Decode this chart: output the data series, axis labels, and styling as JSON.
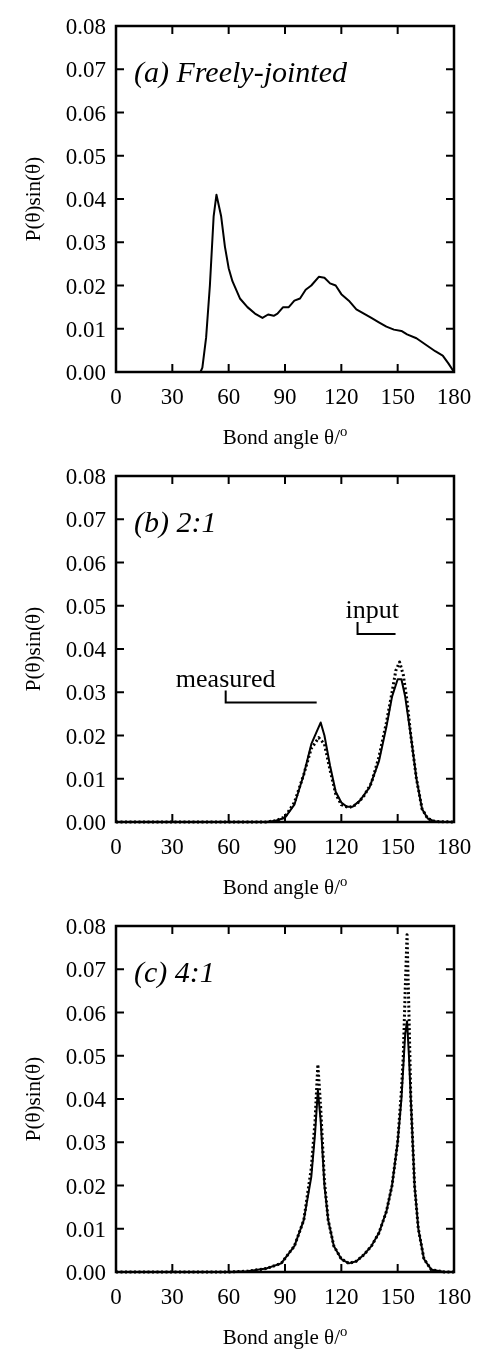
{
  "chart_data": [
    {
      "type": "line",
      "title": "(a) Freely-jointed",
      "xlabel": "Bond angle θ/$^{o}$",
      "ylabel": "P(θ)sin(θ)",
      "xlim": [
        0,
        180
      ],
      "ylim": [
        0,
        0.08
      ],
      "xticks": [
        0,
        30,
        60,
        90,
        120,
        150,
        180
      ],
      "yticks": [
        {
          "value": 0,
          "label": "0.00"
        },
        {
          "value": 0.01,
          "label": "0.01"
        },
        {
          "value": 0.02,
          "label": "0.02"
        },
        {
          "value": 0.03,
          "label": "0.03"
        },
        {
          "value": 0.04,
          "label": "0.04"
        },
        {
          "value": 0.05,
          "label": "0.05"
        },
        {
          "value": 0.06,
          "label": "0.06"
        },
        {
          "value": 0.07,
          "label": "0.07"
        },
        {
          "value": 0.08,
          "label": "0.08"
        }
      ],
      "grid": false,
      "marker": "none",
      "series": [
        {
          "color": "#000000",
          "line_style": "solid",
          "x": [
            0,
            45,
            46,
            48,
            50,
            52,
            53.5,
            56,
            58,
            60,
            62,
            66,
            70,
            74,
            78,
            81,
            84,
            86,
            89,
            92,
            95,
            98,
            101,
            104,
            108,
            111,
            114,
            117,
            120,
            124,
            128,
            132,
            136,
            140,
            144,
            148,
            152,
            155,
            160,
            165,
            170,
            174,
            177,
            180
          ],
          "values": [
            0,
            0,
            0.001,
            0.008,
            0.02,
            0.036,
            0.041,
            0.036,
            0.029,
            0.024,
            0.021,
            0.017,
            0.015,
            0.0135,
            0.0125,
            0.0133,
            0.013,
            0.0135,
            0.015,
            0.015,
            0.0165,
            0.017,
            0.019,
            0.02,
            0.022,
            0.0218,
            0.0205,
            0.02,
            0.018,
            0.0165,
            0.0145,
            0.0135,
            0.0125,
            0.0115,
            0.0105,
            0.0098,
            0.0095,
            0.0087,
            0.0078,
            0.0063,
            0.0048,
            0.0038,
            0.002,
            0
          ]
        }
      ]
    },
    {
      "type": "line",
      "title": "(b) 2:1",
      "xlabel": "Bond angle θ/$^{o}$",
      "ylabel": "P(θ)sin(θ)",
      "xlim": [
        0,
        180
      ],
      "ylim": [
        0,
        0.08
      ],
      "xticks": [
        0,
        30,
        60,
        90,
        120,
        150,
        180
      ],
      "yticks": [
        {
          "value": 0,
          "label": "0.00"
        },
        {
          "value": 0.01,
          "label": "0.01"
        },
        {
          "value": 0.02,
          "label": "0.02"
        },
        {
          "value": 0.03,
          "label": "0.03"
        },
        {
          "value": 0.04,
          "label": "0.04"
        },
        {
          "value": 0.05,
          "label": "0.05"
        },
        {
          "value": 0.06,
          "label": "0.06"
        },
        {
          "value": 0.07,
          "label": "0.07"
        },
        {
          "value": 0.08,
          "label": "0.08"
        }
      ],
      "grid": false,
      "marker": "none",
      "annotations": [
        {
          "text": "measured",
          "x": 109,
          "y": 0.023
        },
        {
          "text": "input",
          "x": 151,
          "y": 0.037
        }
      ],
      "series": [
        {
          "color": "#000000",
          "line_style": "solid",
          "x": [
            0,
            80,
            85,
            90,
            95,
            100,
            104,
            107,
            109,
            111,
            114,
            117,
            120,
            123,
            126,
            130,
            135,
            140,
            144,
            147,
            150,
            152,
            154,
            157,
            160,
            163,
            166,
            170,
            175,
            180
          ],
          "values": [
            0,
            0,
            0.0003,
            0.001,
            0.004,
            0.011,
            0.018,
            0.021,
            0.023,
            0.02,
            0.013,
            0.007,
            0.0045,
            0.0035,
            0.0035,
            0.005,
            0.008,
            0.014,
            0.022,
            0.029,
            0.033,
            0.033,
            0.029,
            0.02,
            0.01,
            0.003,
            0.0008,
            0.0001,
            0,
            0
          ]
        },
        {
          "color": "#000000",
          "line_style": "dotted",
          "x": [
            0,
            80,
            85,
            90,
            95,
            100,
            104,
            108,
            111,
            114,
            117,
            120,
            124,
            128,
            132,
            136,
            140,
            144,
            147,
            149,
            151,
            153,
            155,
            157,
            160,
            163,
            166,
            170,
            180
          ],
          "values": [
            0,
            0,
            0.0003,
            0.0012,
            0.0045,
            0.011,
            0.017,
            0.0195,
            0.018,
            0.012,
            0.0065,
            0.004,
            0.0033,
            0.004,
            0.006,
            0.009,
            0.015,
            0.023,
            0.03,
            0.035,
            0.037,
            0.034,
            0.028,
            0.02,
            0.01,
            0.003,
            0.0008,
            0.0001,
            0
          ]
        }
      ]
    },
    {
      "type": "line",
      "title": "(c) 4:1",
      "xlabel": "Bond angle θ/$^{o}$",
      "ylabel": "P(θ)sin(θ)",
      "xlim": [
        0,
        180
      ],
      "ylim": [
        0,
        0.08
      ],
      "xticks": [
        0,
        30,
        60,
        90,
        120,
        150,
        180
      ],
      "yticks": [
        {
          "value": 0,
          "label": "0.00"
        },
        {
          "value": 0.01,
          "label": "0.01"
        },
        {
          "value": 0.02,
          "label": "0.02"
        },
        {
          "value": 0.03,
          "label": "0.03"
        },
        {
          "value": 0.04,
          "label": "0.04"
        },
        {
          "value": 0.05,
          "label": "0.05"
        },
        {
          "value": 0.06,
          "label": "0.06"
        },
        {
          "value": 0.07,
          "label": "0.07"
        },
        {
          "value": 0.08,
          "label": "0.08"
        }
      ],
      "grid": false,
      "marker": "none",
      "series": [
        {
          "color": "#000000",
          "line_style": "solid",
          "x": [
            0,
            60,
            70,
            80,
            88,
            95,
            100,
            104,
            106,
            107.5,
            109,
            111,
            113,
            116,
            120,
            124,
            128,
            132,
            136,
            140,
            144,
            147,
            150,
            152,
            154,
            155,
            156,
            157.5,
            159,
            161,
            164,
            168,
            175,
            180
          ],
          "values": [
            0,
            0,
            0.0002,
            0.0008,
            0.002,
            0.006,
            0.012,
            0.022,
            0.032,
            0.042,
            0.035,
            0.02,
            0.012,
            0.006,
            0.003,
            0.002,
            0.0025,
            0.004,
            0.006,
            0.009,
            0.014,
            0.02,
            0.03,
            0.04,
            0.055,
            0.058,
            0.05,
            0.035,
            0.02,
            0.01,
            0.003,
            0.0005,
            0,
            0
          ]
        },
        {
          "color": "#000000",
          "line_style": "dotted",
          "x": [
            0,
            60,
            70,
            80,
            88,
            95,
            100,
            104,
            106,
            107.5,
            109,
            111,
            113,
            116,
            120,
            124,
            128,
            132,
            136,
            140,
            144,
            147,
            150,
            152,
            153,
            154,
            155,
            156,
            157,
            159,
            161,
            164,
            168,
            175,
            180
          ],
          "values": [
            0,
            0,
            0.0002,
            0.0008,
            0.002,
            0.006,
            0.012,
            0.024,
            0.035,
            0.048,
            0.038,
            0.021,
            0.012,
            0.006,
            0.003,
            0.002,
            0.0025,
            0.004,
            0.006,
            0.009,
            0.014,
            0.02,
            0.03,
            0.042,
            0.05,
            0.065,
            0.078,
            0.06,
            0.04,
            0.02,
            0.01,
            0.003,
            0.0005,
            0,
            0
          ]
        }
      ]
    }
  ]
}
